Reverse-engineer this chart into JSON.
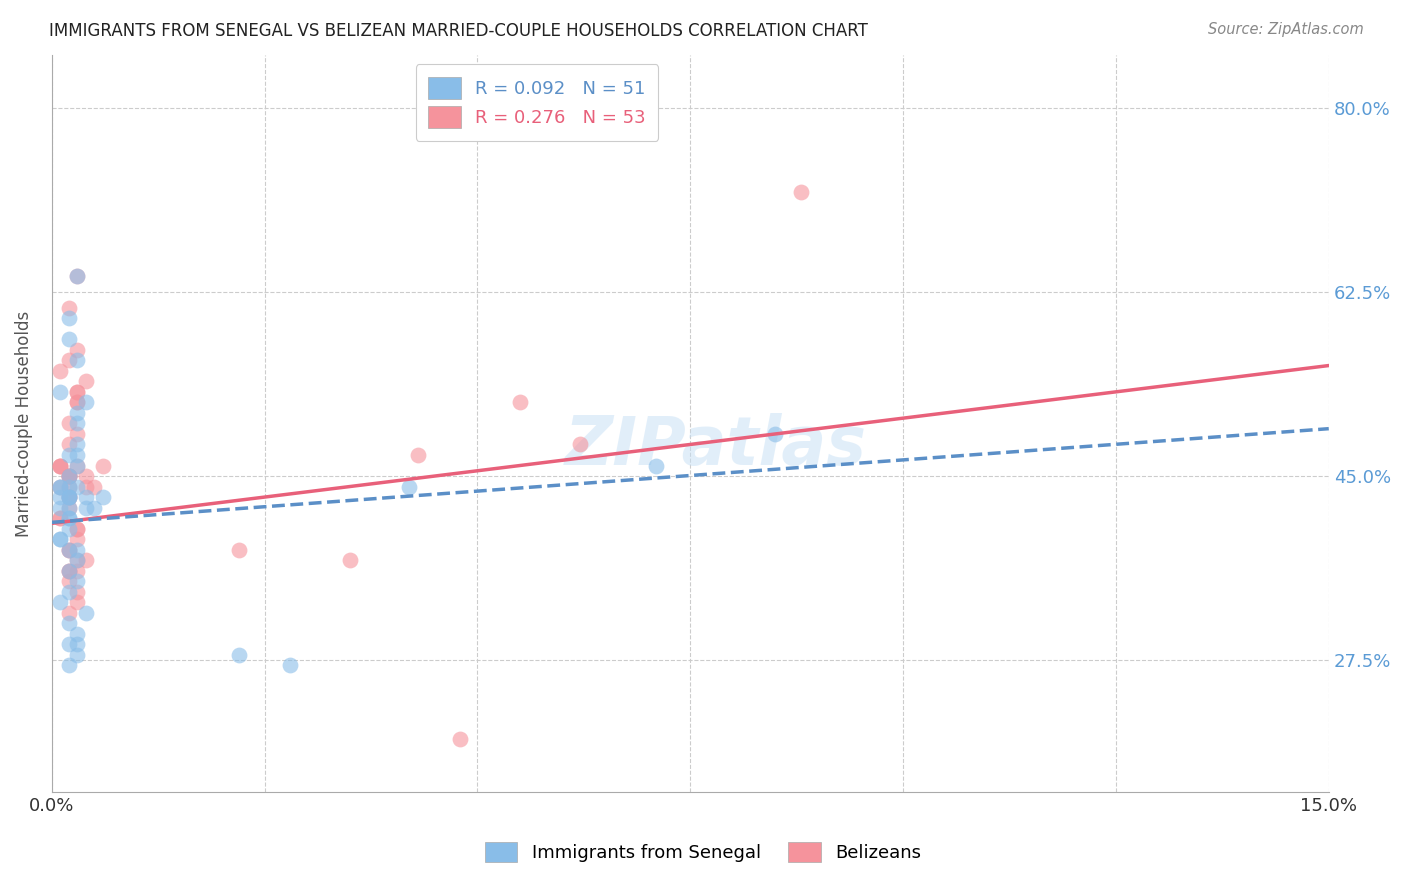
{
  "title": "IMMIGRANTS FROM SENEGAL VS BELIZEAN MARRIED-COUPLE HOUSEHOLDS CORRELATION CHART",
  "source": "Source: ZipAtlas.com",
  "ylabel": "Married-couple Households",
  "color_blue": "#89bde8",
  "color_pink": "#f5939c",
  "color_line_blue": "#5b8fc7",
  "color_line_pink": "#e8607a",
  "watermark": "ZIPatlas",
  "xmin": 0.0,
  "xmax": 0.15,
  "ymin": 0.15,
  "ymax": 0.85,
  "ytick_vals": [
    0.275,
    0.45,
    0.625,
    0.8
  ],
  "ytick_labels": [
    "27.5%",
    "45.0%",
    "62.5%",
    "80.0%"
  ],
  "xtick_vals": [
    0.0,
    0.025,
    0.05,
    0.075,
    0.1,
    0.125,
    0.15
  ],
  "senegal_x": [
    0.001,
    0.002,
    0.001,
    0.003,
    0.002,
    0.001,
    0.002,
    0.003,
    0.001,
    0.002,
    0.003,
    0.002,
    0.003,
    0.002,
    0.004,
    0.002,
    0.003,
    0.001,
    0.002,
    0.003,
    0.004,
    0.002,
    0.001,
    0.003,
    0.002,
    0.001,
    0.002,
    0.003,
    0.002,
    0.003,
    0.002,
    0.003,
    0.004,
    0.002,
    0.003,
    0.002,
    0.001,
    0.002,
    0.003,
    0.002,
    0.004,
    0.003,
    0.002,
    0.003,
    0.006,
    0.005,
    0.022,
    0.028,
    0.042,
    0.071,
    0.085
  ],
  "senegal_y": [
    0.43,
    0.6,
    0.53,
    0.64,
    0.58,
    0.44,
    0.47,
    0.56,
    0.39,
    0.44,
    0.5,
    0.43,
    0.46,
    0.41,
    0.52,
    0.43,
    0.48,
    0.42,
    0.45,
    0.51,
    0.43,
    0.42,
    0.44,
    0.47,
    0.41,
    0.39,
    0.43,
    0.44,
    0.4,
    0.38,
    0.36,
    0.37,
    0.42,
    0.38,
    0.35,
    0.34,
    0.33,
    0.31,
    0.29,
    0.27,
    0.32,
    0.28,
    0.29,
    0.3,
    0.43,
    0.42,
    0.28,
    0.27,
    0.44,
    0.46,
    0.49
  ],
  "belize_x": [
    0.001,
    0.002,
    0.001,
    0.003,
    0.002,
    0.001,
    0.002,
    0.003,
    0.001,
    0.002,
    0.003,
    0.002,
    0.003,
    0.002,
    0.004,
    0.002,
    0.003,
    0.001,
    0.002,
    0.003,
    0.004,
    0.002,
    0.001,
    0.003,
    0.002,
    0.001,
    0.002,
    0.003,
    0.002,
    0.003,
    0.002,
    0.003,
    0.004,
    0.002,
    0.003,
    0.002,
    0.004,
    0.002,
    0.003,
    0.002,
    0.003,
    0.003,
    0.002,
    0.003,
    0.005,
    0.006,
    0.022,
    0.035,
    0.043,
    0.055,
    0.062,
    0.088,
    0.048
  ],
  "belize_y": [
    0.46,
    0.61,
    0.55,
    0.64,
    0.56,
    0.46,
    0.5,
    0.57,
    0.41,
    0.45,
    0.52,
    0.45,
    0.53,
    0.43,
    0.54,
    0.45,
    0.52,
    0.44,
    0.48,
    0.53,
    0.45,
    0.44,
    0.46,
    0.49,
    0.43,
    0.41,
    0.45,
    0.46,
    0.42,
    0.4,
    0.38,
    0.39,
    0.44,
    0.36,
    0.37,
    0.36,
    0.37,
    0.35,
    0.33,
    0.32,
    0.34,
    0.36,
    0.38,
    0.4,
    0.44,
    0.46,
    0.38,
    0.37,
    0.47,
    0.52,
    0.48,
    0.72,
    0.2
  ],
  "line_blue_x0": 0.0,
  "line_blue_x1": 0.15,
  "line_blue_y0": 0.406,
  "line_blue_y1": 0.495,
  "line_pink_x0": 0.0,
  "line_pink_x1": 0.15,
  "line_pink_y0": 0.405,
  "line_pink_y1": 0.555
}
